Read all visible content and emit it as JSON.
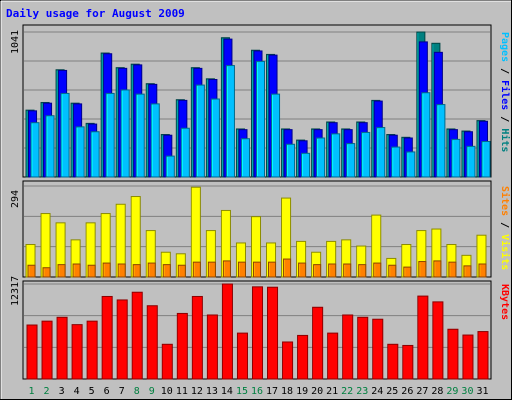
{
  "chart_data": {
    "type": "bar",
    "title": "Daily usage for August 2009",
    "categories": [
      "1",
      "2",
      "3",
      "4",
      "5",
      "6",
      "7",
      "8",
      "9",
      "10",
      "11",
      "12",
      "13",
      "14",
      "15",
      "16",
      "17",
      "18",
      "19",
      "20",
      "21",
      "22",
      "23",
      "24",
      "25",
      "26",
      "27",
      "28",
      "29",
      "30",
      "31"
    ],
    "weekend_days": [
      "1",
      "2",
      "8",
      "9",
      "15",
      "16",
      "22",
      "23",
      "29",
      "30"
    ],
    "panels": [
      {
        "id": "top",
        "ymax_label": "1041",
        "ymax": 1041,
        "axis_labels": [
          "Pages",
          "Files",
          "Hits"
        ],
        "axis_label_colors": [
          "#00c0ff",
          "#0000ff",
          "#008080"
        ],
        "series": [
          {
            "name": "Hits",
            "color": "#008080",
            "values": [
              480,
              535,
              770,
              530,
              385,
              890,
              785,
              810,
              670,
              305,
              555,
              785,
              705,
              1000,
              345,
              910,
              880,
              345,
              265,
              345,
              395,
              345,
              395,
              550,
              305,
              285,
              1041,
              960,
              345,
              330,
              405
            ]
          },
          {
            "name": "Files",
            "color": "#0000ff",
            "values": [
              475,
              530,
              765,
              525,
              380,
              885,
              780,
              805,
              665,
              300,
              550,
              780,
              700,
              990,
              340,
              905,
              875,
              340,
              260,
              340,
              390,
              340,
              390,
              545,
              300,
              280,
              970,
              895,
              340,
              325,
              400
            ]
          },
          {
            "name": "Pages",
            "color": "#00c0ff",
            "values": [
              390,
              440,
              600,
              360,
              325,
              600,
              625,
              595,
              525,
              150,
              350,
              660,
              560,
              800,
              275,
              830,
              595,
              235,
              170,
              280,
              310,
              240,
              320,
              355,
              215,
              180,
              605,
              520,
              270,
              220,
              255
            ]
          }
        ]
      },
      {
        "id": "middle",
        "ymax_label": "294",
        "ymax": 294,
        "axis_labels": [
          "Sites",
          "Visits"
        ],
        "axis_label_colors": [
          "#ff8000",
          "#ffff00"
        ],
        "series": [
          {
            "name": "Visits",
            "color": "#ffff00",
            "values": [
              105,
              205,
              175,
              120,
              175,
              205,
              235,
              260,
              150,
              80,
              75,
              290,
              150,
              215,
              110,
              195,
              110,
              255,
              115,
              80,
              115,
              120,
              100,
              200,
              60,
              105,
              150,
              155,
              105,
              70,
              135
            ]
          },
          {
            "name": "Sites",
            "color": "#ff8000",
            "values": [
              38,
              30,
              40,
              42,
              38,
              45,
              42,
              40,
              45,
              40,
              38,
              48,
              48,
              52,
              48,
              48,
              48,
              58,
              45,
              40,
              42,
              42,
              40,
              45,
              38,
              32,
              50,
              52,
              48,
              36,
              42
            ]
          }
        ]
      },
      {
        "id": "bottom",
        "ymax_label": "12317",
        "ymax": 12317,
        "axis_labels": [
          "KBytes"
        ],
        "axis_label_colors": [
          "#ff0000"
        ],
        "series": [
          {
            "name": "KBytes",
            "color": "#ff0000",
            "values": [
              7000,
              7500,
              8000,
              7050,
              7500,
              10700,
              10250,
              11250,
              9500,
              4500,
              8500,
              10700,
              8300,
              12317,
              5950,
              11950,
              11900,
              4800,
              5650,
              9300,
              5950,
              8300,
              8000,
              7750,
              4500,
              4350,
              10750,
              10000,
              6450,
              5700,
              6150
            ]
          }
        ]
      }
    ]
  }
}
